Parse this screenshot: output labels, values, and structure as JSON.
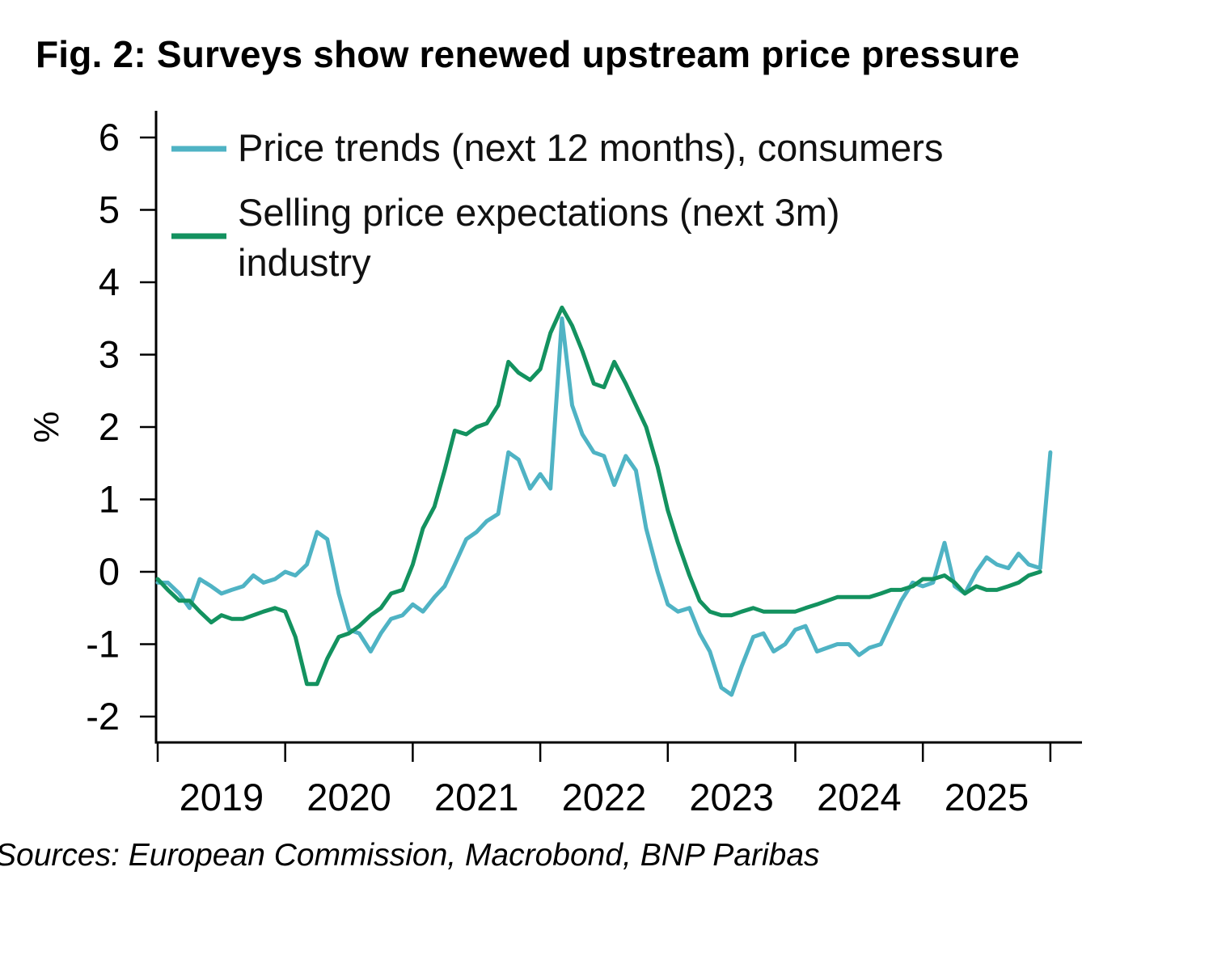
{
  "title": "Fig. 2: Surveys show renewed upstream price pressure",
  "source": "Sources: European Commission, Macrobond, BNP Paribas",
  "chart_data": {
    "type": "line",
    "ylabel": "%",
    "xlabel": "",
    "ylim": [
      -2.35,
      6.5
    ],
    "yticks": [
      "6",
      "5",
      "4",
      "3",
      "2",
      "1",
      "0",
      "-1",
      "-2"
    ],
    "ytick_values": [
      6,
      5,
      4,
      3,
      2,
      1,
      0,
      -1,
      -2
    ],
    "xlim": [
      2019.0,
      2026.0
    ],
    "xticks": [
      "2019",
      "2020",
      "2021",
      "2022",
      "2023",
      "2024",
      "2025"
    ],
    "xtick_values": [
      2019.5,
      2020.5,
      2021.5,
      2022.5,
      2023.5,
      2024.5,
      2025.5
    ],
    "legend": "top-left",
    "series": [
      {
        "name": "Price trends (next 12 months), consumers",
        "color": "#4FB3C4",
        "x": [
          2019.0,
          2019.08,
          2019.17,
          2019.25,
          2019.33,
          2019.42,
          2019.5,
          2019.58,
          2019.67,
          2019.75,
          2019.83,
          2019.92,
          2020.0,
          2020.08,
          2020.17,
          2020.25,
          2020.33,
          2020.42,
          2020.5,
          2020.58,
          2020.67,
          2020.75,
          2020.83,
          2020.92,
          2021.0,
          2021.08,
          2021.17,
          2021.25,
          2021.33,
          2021.42,
          2021.5,
          2021.58,
          2021.67,
          2021.75,
          2021.83,
          2021.92,
          2022.0,
          2022.08,
          2022.17,
          2022.25,
          2022.33,
          2022.42,
          2022.5,
          2022.58,
          2022.67,
          2022.75,
          2022.83,
          2022.92,
          2023.0,
          2023.08,
          2023.17,
          2023.25,
          2023.33,
          2023.42,
          2023.5,
          2023.58,
          2023.67,
          2023.75,
          2023.83,
          2023.92,
          2024.0,
          2024.08,
          2024.17,
          2024.25,
          2024.33,
          2024.42,
          2024.5,
          2024.58,
          2024.67,
          2024.75,
          2024.83,
          2024.92,
          2025.0,
          2025.08,
          2025.17,
          2025.25,
          2025.33,
          2025.42,
          2025.5,
          2025.58,
          2025.67,
          2025.75,
          2025.83,
          2025.92,
          2026.0
        ],
        "values": [
          -0.15,
          -0.15,
          -0.3,
          -0.5,
          -0.1,
          -0.2,
          -0.3,
          -0.25,
          -0.2,
          -0.05,
          -0.15,
          -0.1,
          0.0,
          -0.05,
          0.1,
          0.55,
          0.45,
          -0.3,
          -0.8,
          -0.85,
          -1.1,
          -0.85,
          -0.65,
          -0.6,
          -0.45,
          -0.55,
          -0.35,
          -0.2,
          0.1,
          0.45,
          0.55,
          0.7,
          0.8,
          1.65,
          1.55,
          1.15,
          1.35,
          1.15,
          3.5,
          2.3,
          1.9,
          1.65,
          1.6,
          1.2,
          1.6,
          1.4,
          0.6,
          0.0,
          -0.45,
          -0.55,
          -0.5,
          -0.85,
          -1.1,
          -1.6,
          -1.7,
          -1.3,
          -0.9,
          -0.85,
          -1.1,
          -1.0,
          -0.8,
          -0.75,
          -1.1,
          -1.05,
          -1.0,
          -1.0,
          -1.15,
          -1.05,
          -1.0,
          -0.7,
          -0.4,
          -0.15,
          -0.2,
          -0.15,
          0.4,
          -0.2,
          -0.3,
          0.0,
          0.2,
          0.1,
          0.05,
          0.25,
          0.1,
          0.05,
          1.65
        ]
      },
      {
        "name": "Selling price expectations (next 3m) industry",
        "color": "#13925F",
        "x": [
          2019.0,
          2019.08,
          2019.17,
          2019.25,
          2019.33,
          2019.42,
          2019.5,
          2019.58,
          2019.67,
          2019.75,
          2019.83,
          2019.92,
          2020.0,
          2020.08,
          2020.17,
          2020.25,
          2020.33,
          2020.42,
          2020.5,
          2020.58,
          2020.67,
          2020.75,
          2020.83,
          2020.92,
          2021.0,
          2021.08,
          2021.17,
          2021.25,
          2021.33,
          2021.42,
          2021.5,
          2021.58,
          2021.67,
          2021.75,
          2021.83,
          2021.92,
          2022.0,
          2022.08,
          2022.17,
          2022.25,
          2022.33,
          2022.42,
          2022.5,
          2022.58,
          2022.67,
          2022.75,
          2022.83,
          2022.92,
          2023.0,
          2023.08,
          2023.17,
          2023.25,
          2023.33,
          2023.42,
          2023.5,
          2023.58,
          2023.67,
          2023.75,
          2023.83,
          2023.92,
          2024.0,
          2024.08,
          2024.17,
          2024.25,
          2024.33,
          2024.42,
          2024.5,
          2024.58,
          2024.67,
          2024.75,
          2024.83,
          2024.92,
          2025.0,
          2025.08,
          2025.17,
          2025.25,
          2025.33,
          2025.42,
          2025.5,
          2025.58,
          2025.67,
          2025.75,
          2025.83,
          2025.92
        ],
        "values": [
          -0.1,
          -0.25,
          -0.4,
          -0.4,
          -0.55,
          -0.7,
          -0.6,
          -0.65,
          -0.65,
          -0.6,
          -0.55,
          -0.5,
          -0.55,
          -0.9,
          -1.55,
          -1.55,
          -1.2,
          -0.9,
          -0.85,
          -0.75,
          -0.6,
          -0.5,
          -0.3,
          -0.25,
          0.1,
          0.6,
          0.9,
          1.4,
          1.95,
          1.9,
          2.0,
          2.05,
          2.3,
          2.9,
          2.75,
          2.65,
          2.8,
          3.3,
          3.65,
          3.4,
          3.05,
          2.6,
          2.55,
          2.9,
          2.6,
          2.3,
          2.0,
          1.45,
          0.85,
          0.4,
          -0.05,
          -0.4,
          -0.55,
          -0.6,
          -0.6,
          -0.55,
          -0.5,
          -0.55,
          -0.55,
          -0.55,
          -0.55,
          -0.5,
          -0.45,
          -0.4,
          -0.35,
          -0.35,
          -0.35,
          -0.35,
          -0.3,
          -0.25,
          -0.25,
          -0.2,
          -0.1,
          -0.1,
          -0.05,
          -0.15,
          -0.3,
          -0.2,
          -0.25,
          -0.25,
          -0.2,
          -0.15,
          -0.05,
          0.0
        ]
      }
    ]
  }
}
